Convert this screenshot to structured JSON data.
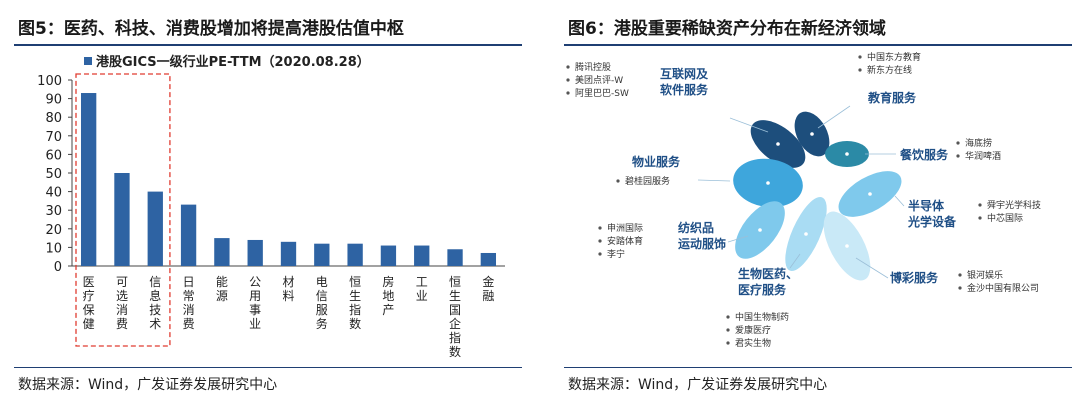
{
  "left": {
    "title": "图5：医药、科技、消费股增加将提高港股估值中枢",
    "source": "数据来源：Wind，广发证券发展研究中心"
  },
  "right": {
    "title": "图6：港股重要稀缺资产分布在新经济领域",
    "source": "数据来源：Wind，广发证券发展研究中心"
  },
  "chart_data": [
    {
      "type": "bar",
      "legend": "港股GICS一级行业PE-TTM（2020.08.28）",
      "legend_position": "top",
      "categories": [
        "医疗保健",
        "可选消费",
        "信息技术",
        "日常消费",
        "能源",
        "公用事业",
        "材料",
        "电信服务",
        "恒生指数",
        "房地产",
        "工业",
        "恒生国企指数",
        "金融"
      ],
      "values": [
        93,
        50,
        40,
        33,
        15,
        14,
        13,
        12,
        12,
        11,
        11,
        9,
        7
      ],
      "ylim": [
        0,
        100
      ],
      "yticks": [
        0,
        10,
        20,
        30,
        40,
        50,
        60,
        70,
        80,
        90,
        100
      ],
      "highlight_categories": [
        "医疗保健",
        "可选消费",
        "信息技术"
      ],
      "color": "#2e63a3",
      "highlight_box_color": "#e03c31"
    }
  ],
  "diagram": {
    "sectors": [
      {
        "name": "互联网及软件服务",
        "lines": [
          "互联网及",
          "软件服务"
        ],
        "companies": [
          "腾讯控股",
          "美团点评-W",
          "阿里巴巴-SW"
        ]
      },
      {
        "name": "教育服务",
        "lines": [
          "教育服务"
        ],
        "companies": [
          "中国东方教育",
          "新东方在线"
        ]
      },
      {
        "name": "餐饮服务",
        "lines": [
          "餐饮服务"
        ],
        "companies": [
          "海底捞",
          "华润啤酒"
        ]
      },
      {
        "name": "物业服务",
        "lines": [
          "物业服务"
        ],
        "companies": [
          "碧桂园服务"
        ]
      },
      {
        "name": "半导体光学设备",
        "lines": [
          "半导体",
          "光学设备"
        ],
        "companies": [
          "舜宇光学科技",
          "中芯国际"
        ]
      },
      {
        "name": "纺织品运动服饰",
        "lines": [
          "纺织品",
          "运动服饰"
        ],
        "companies": [
          "申洲国际",
          "安踏体育",
          "李宁"
        ]
      },
      {
        "name": "生物医药、医疗服务",
        "lines": [
          "生物医药、",
          "医疗服务"
        ],
        "companies": [
          "中国生物制药",
          "爱康医疗",
          "君实生物"
        ]
      },
      {
        "name": "博彩服务",
        "lines": [
          "博彩服务"
        ],
        "companies": [
          "银河娱乐",
          "金沙中国有限公司"
        ]
      }
    ],
    "colors": {
      "dark": "#1d4e7c",
      "mid_dark": "#2f7fb0",
      "teal": "#2b8aa6",
      "mid": "#3ea6dc",
      "light": "#7fc9ec",
      "lighter": "#a9dcf3",
      "pale": "#c9e9f7",
      "label": "#1f4f86"
    }
  }
}
